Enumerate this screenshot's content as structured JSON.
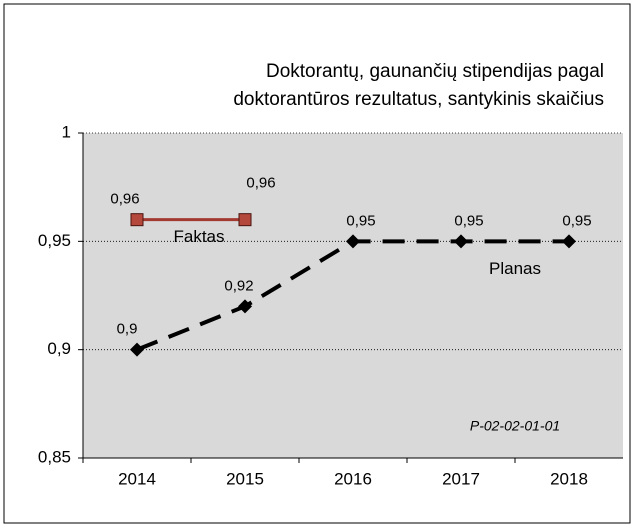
{
  "chart_data": {
    "type": "line",
    "title": [
      "Doktorantų, gaunančių stipendijas pagal",
      "doktorantūros rezultatus, santykinis skaičius"
    ],
    "categories": [
      "2014",
      "2015",
      "2016",
      "2017",
      "2018"
    ],
    "series": [
      {
        "name": "Faktas",
        "color": "#a33a32",
        "values": [
          0.96,
          0.96,
          null,
          null,
          null
        ],
        "value_labels": [
          "0,96",
          "0,96",
          null,
          null,
          null
        ]
      },
      {
        "name": "Planas",
        "color": "#000000",
        "values": [
          0.9,
          0.92,
          0.95,
          0.95,
          0.95
        ],
        "value_labels": [
          "0,9",
          "0,92",
          "0,95",
          "0,95",
          "0,95"
        ]
      }
    ],
    "ylim": [
      0.85,
      1
    ],
    "yticks": [
      {
        "value": 0.85,
        "label": "0,85"
      },
      {
        "value": 0.9,
        "label": "0,9"
      },
      {
        "value": 0.95,
        "label": "0,95"
      },
      1
    ],
    "grid": true,
    "annotation": "P-02-02-01-01"
  }
}
